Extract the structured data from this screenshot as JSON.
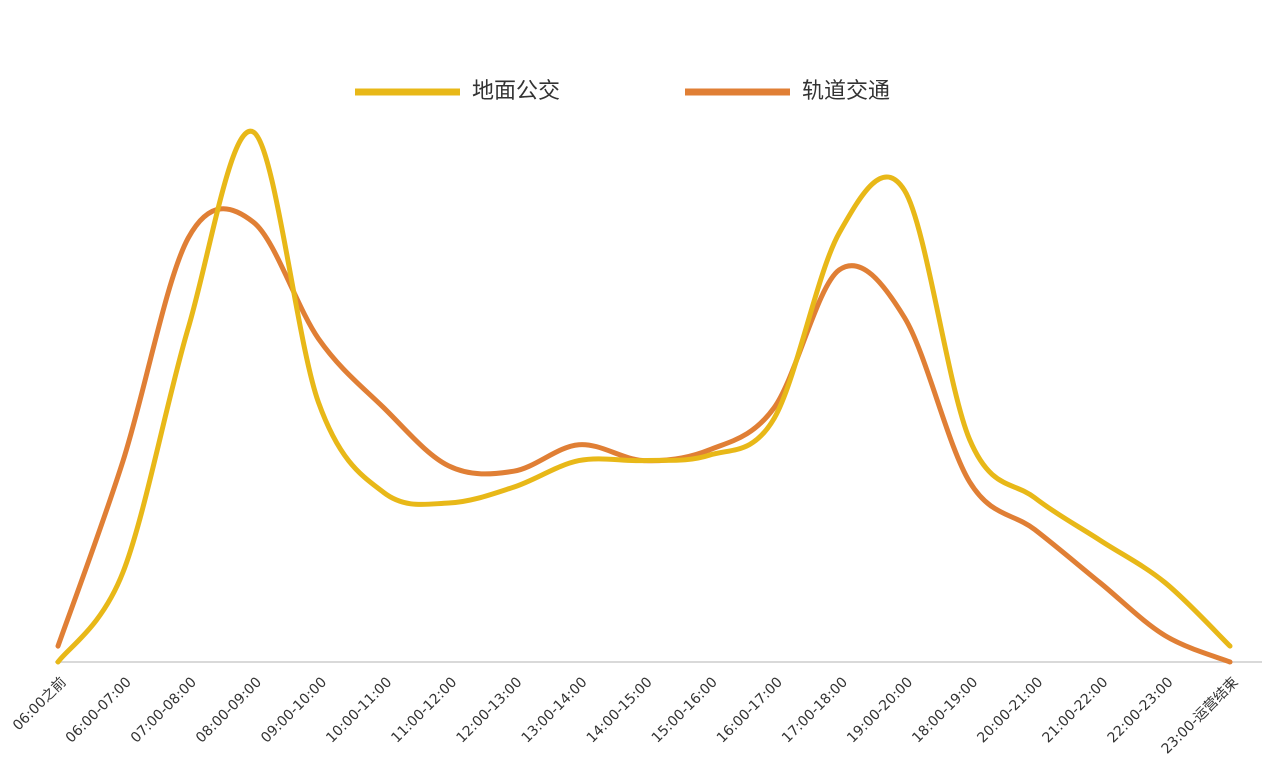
{
  "chart_data": {
    "type": "line",
    "categories": [
      "06:00之前",
      "06:00-07:00",
      "07:00-08:00",
      "08:00-09:00",
      "09:00-10:00",
      "10:00-11:00",
      "11:00-12:00",
      "12:00-13:00",
      "13:00-14:00",
      "14:00-15:00",
      "15:00-16:00",
      "16:00-17:00",
      "17:00-18:00",
      "19:00-20:00",
      "18:00-19:00",
      "20:00-21:00",
      "21:00-22:00",
      "22:00-23:00",
      "23:00-运营结束"
    ],
    "series": [
      {
        "name": "地面公交",
        "color": "#e8b818",
        "values": [
          0,
          17,
          63,
          100,
          49,
          32,
          30,
          33,
          38,
          38,
          39,
          46,
          81,
          89,
          42,
          31,
          23,
          15,
          3
        ]
      },
      {
        "name": "轨道交通",
        "color": "#e07f35",
        "values": [
          3,
          38,
          80,
          83,
          61,
          48,
          37,
          36,
          41,
          38,
          40,
          48,
          74,
          65,
          34,
          25,
          15,
          5,
          0
        ]
      }
    ],
    "ylim": [
      0,
      100
    ],
    "legend": "top"
  }
}
